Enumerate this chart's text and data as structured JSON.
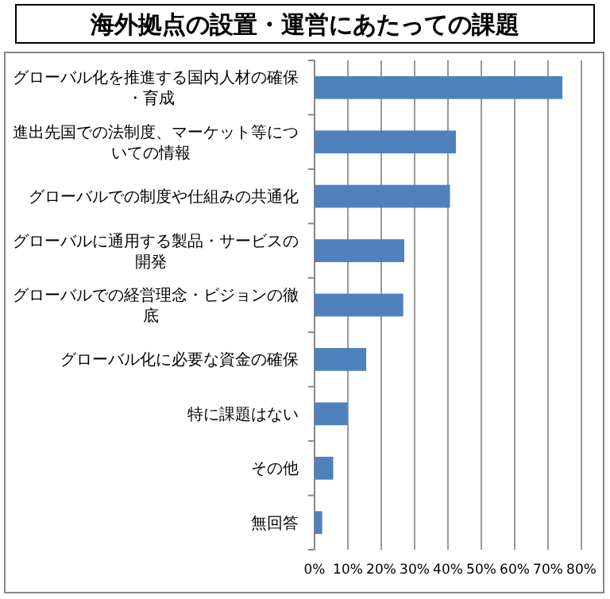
{
  "chart_data": {
    "type": "bar",
    "orientation": "horizontal",
    "title": "海外拠点の設置・運営にあたっての課題",
    "categories": [
      "グローバル化を推進する国内人材の確保・育成",
      "進出先国での法制度、マーケット等についての情報",
      "グローバルでの制度や仕組みの共通化",
      "グローバルに通用する製品・サービスの開発",
      "グローバルでの経営理念・ビジョンの徹底",
      "グローバル化に必要な資金の確保",
      "特に課題はない",
      "その他",
      "無回答"
    ],
    "values": [
      74.3,
      42.4,
      40.6,
      26.9,
      26.6,
      15.5,
      9.9,
      5.6,
      2.3
    ],
    "color": "#4f81bd",
    "xlim": [
      0,
      80
    ],
    "xticks": [
      {
        "value": 0,
        "label": "0%"
      },
      {
        "value": 10,
        "label": "10%"
      },
      {
        "value": 20,
        "label": "20%"
      },
      {
        "value": 30,
        "label": "30%"
      },
      {
        "value": 40,
        "label": "40%"
      },
      {
        "value": 50,
        "label": "50%"
      },
      {
        "value": 60,
        "label": "60%"
      },
      {
        "value": 70,
        "label": "70%"
      },
      {
        "value": 80,
        "label": "80%"
      }
    ],
    "grid": "x"
  }
}
